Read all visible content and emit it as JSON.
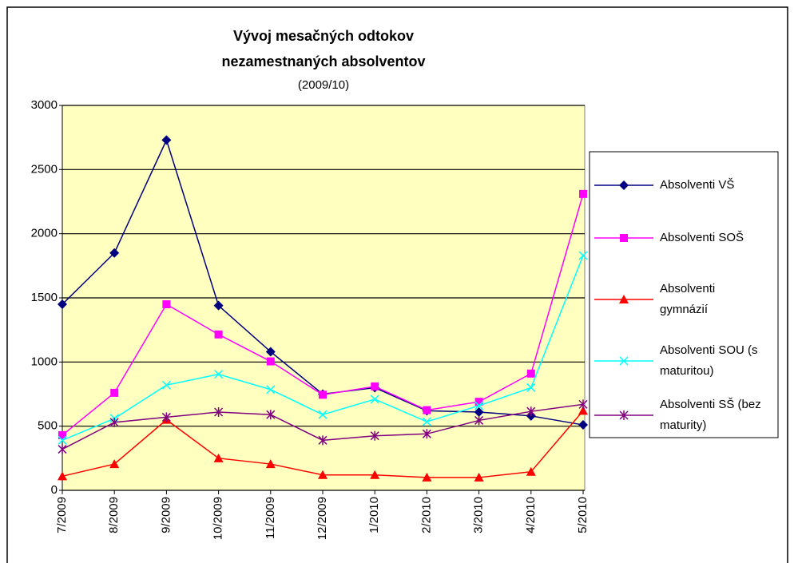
{
  "chart_data": {
    "type": "line",
    "title": [
      "Vývoj mesačných odtokov",
      "nezamestnaných absolventov"
    ],
    "subtitle": "(2009/10)",
    "categories": [
      "7/2009",
      "8/2009",
      "9/2009",
      "10/2009",
      "11/2009",
      "12/2009",
      "1/2010",
      "2/2010",
      "3/2010",
      "4/2010",
      "5/2010"
    ],
    "series": [
      {
        "name": "Absolventi VŠ",
        "color": "#000080",
        "marker": "diamond",
        "values": [
          1450,
          1850,
          2730,
          1440,
          1080,
          750,
          800,
          620,
          610,
          580,
          510
        ]
      },
      {
        "name": "Absolventi SOŠ",
        "color": "#ff00ff",
        "marker": "square",
        "values": [
          430,
          760,
          1450,
          1215,
          1005,
          745,
          810,
          625,
          690,
          910,
          2310
        ]
      },
      {
        "name": "Absolventi gymnázií",
        "color": "#ff0000",
        "marker": "triangle",
        "values": [
          110,
          205,
          550,
          250,
          205,
          120,
          120,
          100,
          100,
          145,
          620
        ]
      },
      {
        "name": "Absolventi SOU (s maturitou)",
        "color": "#00ffff",
        "marker": "x",
        "values": [
          390,
          560,
          820,
          905,
          785,
          590,
          710,
          535,
          660,
          800,
          1830
        ]
      },
      {
        "name": "Absolventi SŠ (bez maturity)",
        "color": "#800080",
        "marker": "star",
        "values": [
          320,
          530,
          570,
          610,
          590,
          390,
          425,
          440,
          545,
          615,
          670
        ]
      }
    ],
    "ylim": [
      0,
      3000
    ],
    "yticks": [
      0,
      500,
      1000,
      1500,
      2000,
      2500,
      3000
    ],
    "grid": true,
    "legend": "right"
  }
}
